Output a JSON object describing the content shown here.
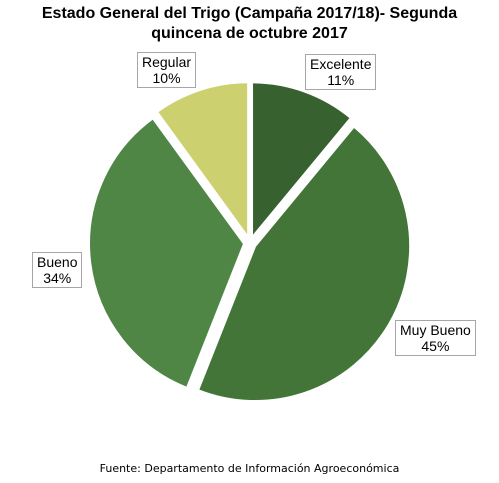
{
  "chart_data": {
    "type": "pie",
    "title_line1": "Estado General del Trigo (Campaña 2017/18)- Segunda",
    "title_line2": "quincena de octubre 2017",
    "slices": [
      {
        "name": "Excelente",
        "value": 11,
        "label": "11%",
        "color": "#386130"
      },
      {
        "name": "Muy Bueno",
        "value": 45,
        "label": "45%",
        "color": "#447538"
      },
      {
        "name": "Bueno",
        "value": 34,
        "label": "34%",
        "color": "#4f8645"
      },
      {
        "name": "Regular",
        "value": 10,
        "label": "10%",
        "color": "#cdd06e"
      }
    ],
    "source": "Fuente: Departamento de Información Agroeconómica"
  }
}
